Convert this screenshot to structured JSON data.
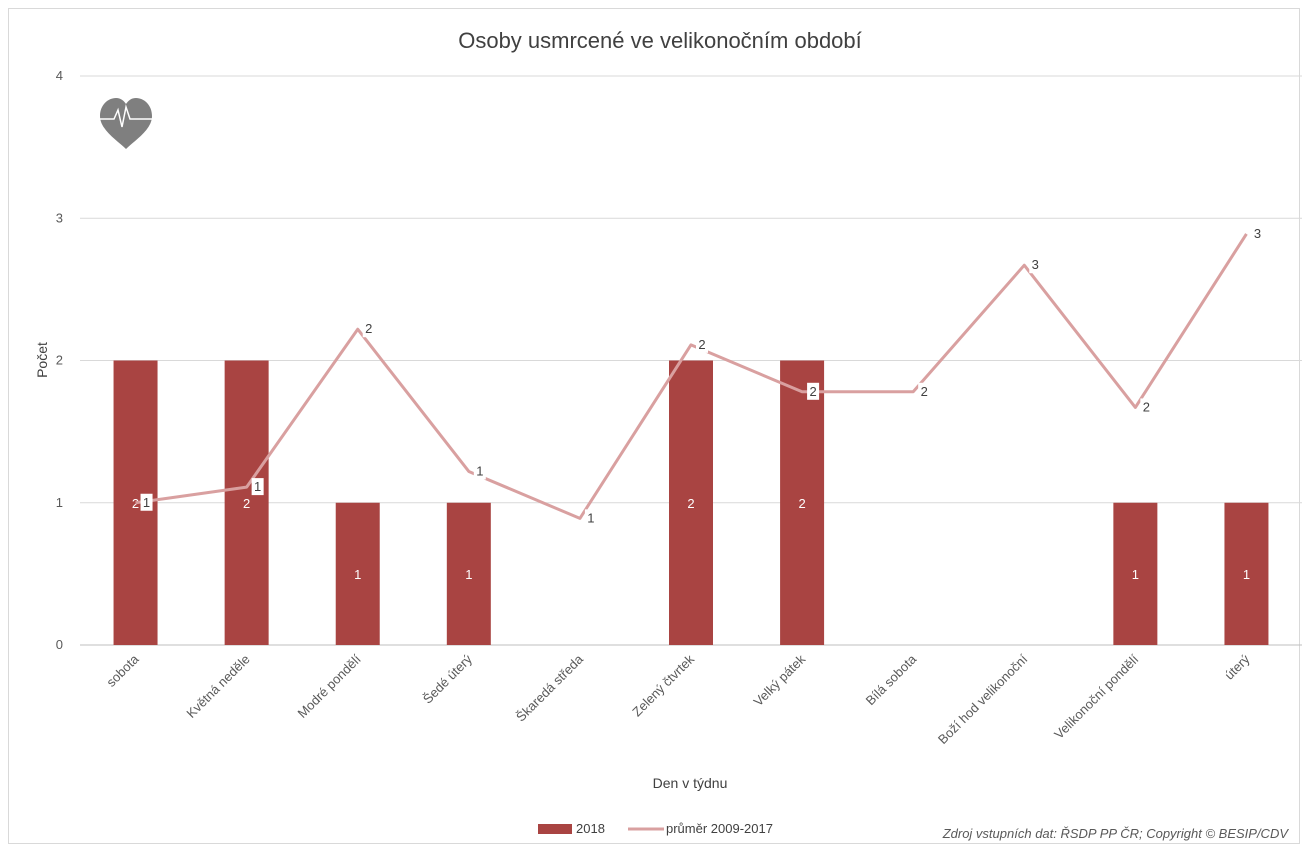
{
  "chart_data": {
    "type": "bar",
    "title": "Osoby usmrcené ve velikonočním období",
    "xlabel": "Den v týdnu",
    "ylabel": "Počet",
    "ylim": [
      0,
      4
    ],
    "yticks": [
      "0",
      "1",
      "2",
      "3",
      "4"
    ],
    "grid": true,
    "legend_position": "bottom",
    "categories": [
      "sobota",
      "Květná neděle",
      "Modré pondělí",
      "Šedé úterý",
      "Škaredá středa",
      "Zelený čtvrtek",
      "Velký pátek",
      "Bílá sobota",
      "Boží hod velikonoční",
      "Velikonoční pondělí",
      "úterý"
    ],
    "series": [
      {
        "name": "2018",
        "type": "bar",
        "color": "#a94442",
        "values": [
          2,
          2,
          1,
          1,
          0,
          2,
          2,
          0,
          0,
          1,
          1
        ],
        "labels": [
          "2",
          "2",
          "1",
          "1",
          "",
          "2",
          "2",
          "",
          "",
          "1",
          "1"
        ]
      },
      {
        "name": "průměr 2009-2017",
        "type": "line",
        "color": "#d9a0a0",
        "values": [
          1.0,
          1.11,
          2.22,
          1.22,
          0.89,
          2.11,
          1.78,
          1.78,
          2.67,
          1.67,
          2.89
        ],
        "labels": [
          "1",
          "1",
          "2",
          "1",
          "1",
          "2",
          "2",
          "2",
          "3",
          "2",
          "3"
        ]
      }
    ],
    "source": "Zdroj vstupních dat: ŘSDP PP ČR; Copyright © BESIP/CDV",
    "icon": "heart-pulse-icon"
  }
}
